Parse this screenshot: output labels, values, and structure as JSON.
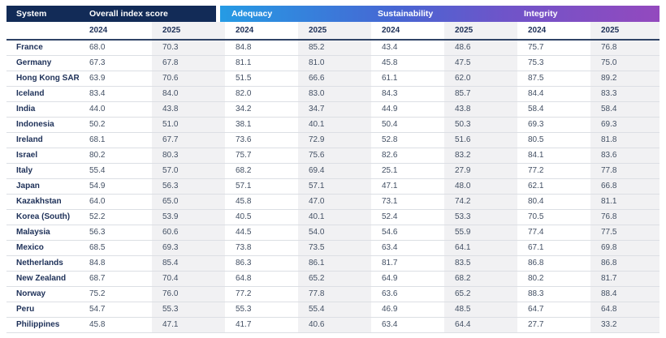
{
  "table": {
    "system_header": "System",
    "groups": [
      {
        "label": "Overall index score"
      },
      {
        "label": "Adequacy"
      },
      {
        "label": "Sustainability"
      },
      {
        "label": "Integrity"
      }
    ],
    "year_headers": [
      "2024",
      "2025",
      "2024",
      "2025",
      "2024",
      "2025",
      "2024",
      "2025"
    ],
    "rows": [
      {
        "system": "France",
        "values": [
          "68.0",
          "70.3",
          "84.8",
          "85.2",
          "43.4",
          "48.6",
          "75.7",
          "76.8"
        ]
      },
      {
        "system": "Germany",
        "values": [
          "67.3",
          "67.8",
          "81.1",
          "81.0",
          "45.8",
          "47.5",
          "75.3",
          "75.0"
        ]
      },
      {
        "system": "Hong Kong SAR",
        "values": [
          "63.9",
          "70.6",
          "51.5",
          "66.6",
          "61.1",
          "62.0",
          "87.5",
          "89.2"
        ]
      },
      {
        "system": "Iceland",
        "values": [
          "83.4",
          "84.0",
          "82.0",
          "83.0",
          "84.3",
          "85.7",
          "84.4",
          "83.3"
        ]
      },
      {
        "system": "India",
        "values": [
          "44.0",
          "43.8",
          "34.2",
          "34.7",
          "44.9",
          "43.8",
          "58.4",
          "58.4"
        ]
      },
      {
        "system": "Indonesia",
        "values": [
          "50.2",
          "51.0",
          "38.1",
          "40.1",
          "50.4",
          "50.3",
          "69.3",
          "69.3"
        ]
      },
      {
        "system": "Ireland",
        "values": [
          "68.1",
          "67.7",
          "73.6",
          "72.9",
          "52.8",
          "51.6",
          "80.5",
          "81.8"
        ]
      },
      {
        "system": "Israel",
        "values": [
          "80.2",
          "80.3",
          "75.7",
          "75.6",
          "82.6",
          "83.2",
          "84.1",
          "83.6"
        ]
      },
      {
        "system": "Italy",
        "values": [
          "55.4",
          "57.0",
          "68.2",
          "69.4",
          "25.1",
          "27.9",
          "77.2",
          "77.8"
        ]
      },
      {
        "system": "Japan",
        "values": [
          "54.9",
          "56.3",
          "57.1",
          "57.1",
          "47.1",
          "48.0",
          "62.1",
          "66.8"
        ]
      },
      {
        "system": "Kazakhstan",
        "values": [
          "64.0",
          "65.0",
          "45.8",
          "47.0",
          "73.1",
          "74.2",
          "80.4",
          "81.1"
        ]
      },
      {
        "system": "Korea (South)",
        "values": [
          "52.2",
          "53.9",
          "40.5",
          "40.1",
          "52.4",
          "53.3",
          "70.5",
          "76.8"
        ]
      },
      {
        "system": "Malaysia",
        "values": [
          "56.3",
          "60.6",
          "44.5",
          "54.0",
          "54.6",
          "55.9",
          "77.4",
          "77.5"
        ]
      },
      {
        "system": "Mexico",
        "values": [
          "68.5",
          "69.3",
          "73.8",
          "73.5",
          "63.4",
          "64.1",
          "67.1",
          "69.8"
        ]
      },
      {
        "system": "Netherlands",
        "values": [
          "84.8",
          "85.4",
          "86.3",
          "86.1",
          "81.7",
          "83.5",
          "86.8",
          "86.8"
        ]
      },
      {
        "system": "New Zealand",
        "values": [
          "68.7",
          "70.4",
          "64.8",
          "65.2",
          "64.9",
          "68.2",
          "80.2",
          "81.7"
        ]
      },
      {
        "system": "Norway",
        "values": [
          "75.2",
          "76.0",
          "77.2",
          "77.8",
          "63.6",
          "65.2",
          "88.3",
          "88.4"
        ]
      },
      {
        "system": "Peru",
        "values": [
          "54.7",
          "55.3",
          "55.3",
          "55.4",
          "46.9",
          "48.5",
          "64.7",
          "64.8"
        ]
      },
      {
        "system": "Philippines",
        "values": [
          "45.8",
          "47.1",
          "41.7",
          "40.6",
          "63.4",
          "64.4",
          "27.7",
          "33.2"
        ]
      }
    ]
  },
  "chart_data": {
    "type": "table",
    "columns": [
      "System",
      "Overall index score 2024",
      "Overall index score 2025",
      "Adequacy 2024",
      "Adequacy 2025",
      "Sustainability 2024",
      "Sustainability 2025",
      "Integrity 2024",
      "Integrity 2025"
    ],
    "rows": [
      [
        "France",
        68.0,
        70.3,
        84.8,
        85.2,
        43.4,
        48.6,
        75.7,
        76.8
      ],
      [
        "Germany",
        67.3,
        67.8,
        81.1,
        81.0,
        45.8,
        47.5,
        75.3,
        75.0
      ],
      [
        "Hong Kong SAR",
        63.9,
        70.6,
        51.5,
        66.6,
        61.1,
        62.0,
        87.5,
        89.2
      ],
      [
        "Iceland",
        83.4,
        84.0,
        82.0,
        83.0,
        84.3,
        85.7,
        84.4,
        83.3
      ],
      [
        "India",
        44.0,
        43.8,
        34.2,
        34.7,
        44.9,
        43.8,
        58.4,
        58.4
      ],
      [
        "Indonesia",
        50.2,
        51.0,
        38.1,
        40.1,
        50.4,
        50.3,
        69.3,
        69.3
      ],
      [
        "Ireland",
        68.1,
        67.7,
        73.6,
        72.9,
        52.8,
        51.6,
        80.5,
        81.8
      ],
      [
        "Israel",
        80.2,
        80.3,
        75.7,
        75.6,
        82.6,
        83.2,
        84.1,
        83.6
      ],
      [
        "Italy",
        55.4,
        57.0,
        68.2,
        69.4,
        25.1,
        27.9,
        77.2,
        77.8
      ],
      [
        "Japan",
        54.9,
        56.3,
        57.1,
        57.1,
        47.1,
        48.0,
        62.1,
        66.8
      ],
      [
        "Kazakhstan",
        64.0,
        65.0,
        45.8,
        47.0,
        73.1,
        74.2,
        80.4,
        81.1
      ],
      [
        "Korea (South)",
        52.2,
        53.9,
        40.5,
        40.1,
        52.4,
        53.3,
        70.5,
        76.8
      ],
      [
        "Malaysia",
        56.3,
        60.6,
        44.5,
        54.0,
        54.6,
        55.9,
        77.4,
        77.5
      ],
      [
        "Mexico",
        68.5,
        69.3,
        73.8,
        73.5,
        63.4,
        64.1,
        67.1,
        69.8
      ],
      [
        "Netherlands",
        84.8,
        85.4,
        86.3,
        86.1,
        81.7,
        83.5,
        86.8,
        86.8
      ],
      [
        "New Zealand",
        68.7,
        70.4,
        64.8,
        65.2,
        64.9,
        68.2,
        80.2,
        81.7
      ],
      [
        "Norway",
        75.2,
        76.0,
        77.2,
        77.8,
        63.6,
        65.2,
        88.3,
        88.4
      ],
      [
        "Peru",
        54.7,
        55.3,
        55.3,
        55.4,
        46.9,
        48.5,
        64.7,
        64.8
      ],
      [
        "Philippines",
        45.8,
        47.1,
        41.7,
        40.6,
        63.4,
        64.4,
        27.7,
        33.2
      ]
    ]
  },
  "colors": {
    "header_navy": "#122B57",
    "gradient_start": "#259BE4",
    "gradient_mid": "#4766D3",
    "gradient_mid2": "#6F54C9",
    "gradient_end": "#9349BE",
    "band_gray": "#F1F1F3",
    "row_line": "#DCDFE4",
    "subheader_line": "#2F4366",
    "label_navy": "#1D3058",
    "value_gray": "#435064"
  }
}
